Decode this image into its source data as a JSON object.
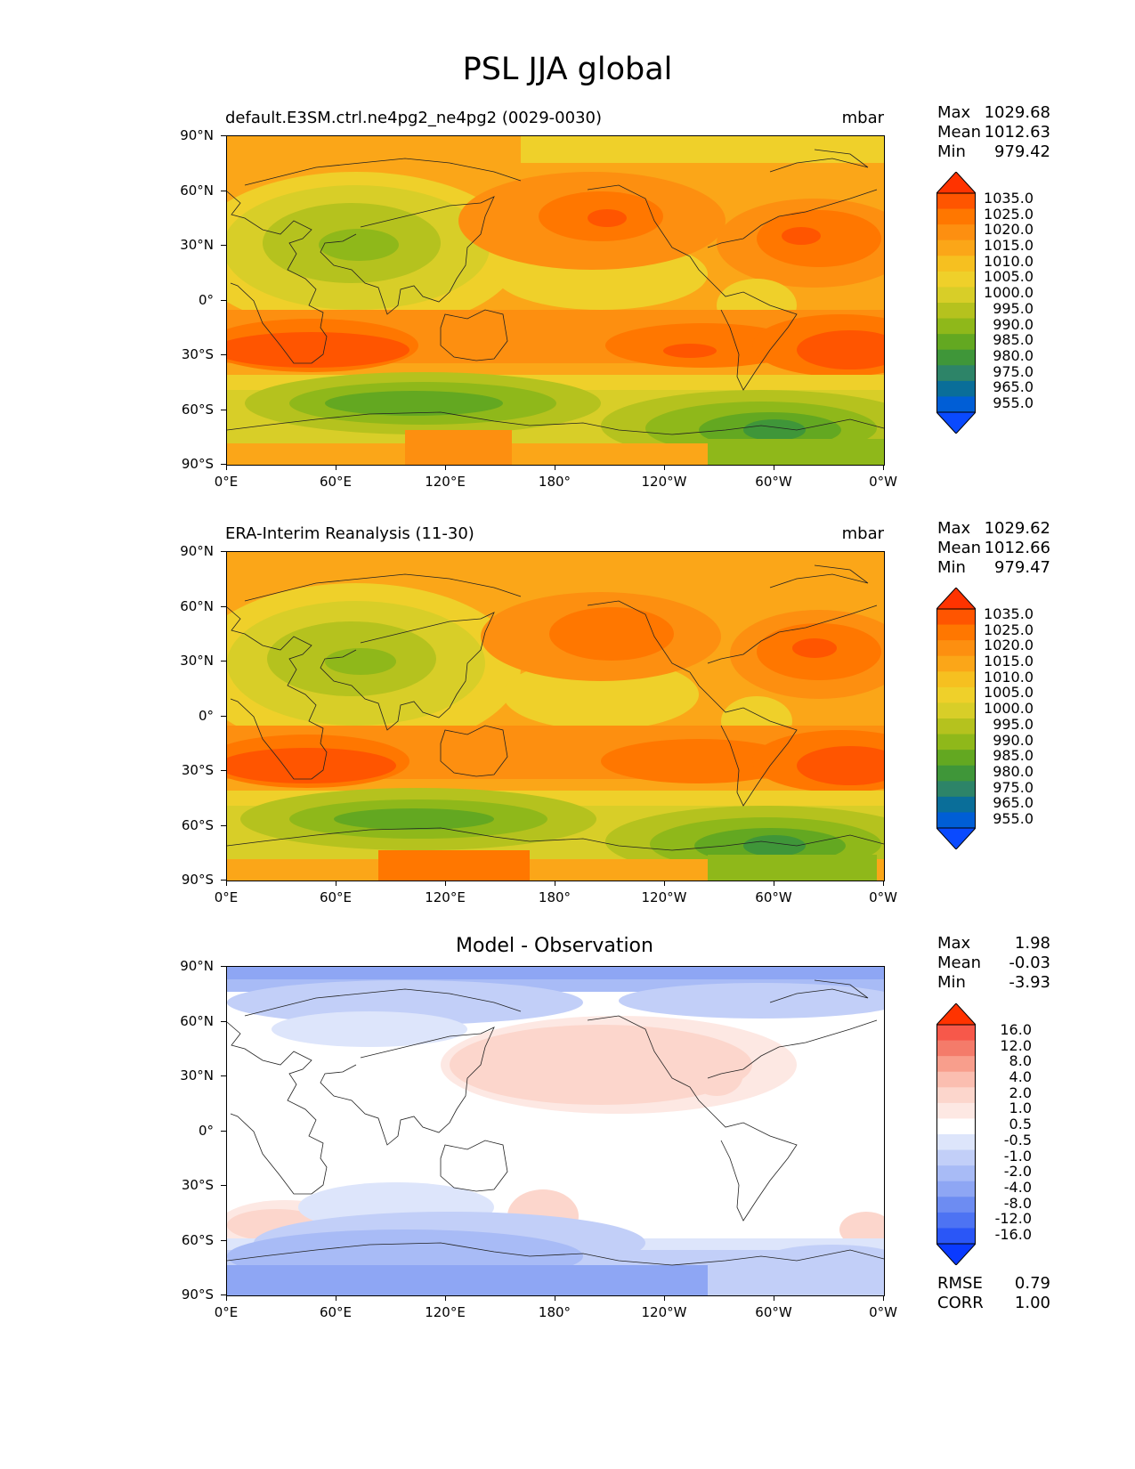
{
  "figure": {
    "title": "PSL JJA global"
  },
  "axes": {
    "lat_ticks": [
      "90°N",
      "60°N",
      "30°N",
      "0°",
      "30°S",
      "60°S",
      "90°S"
    ],
    "lon_ticks": [
      "0°E",
      "60°E",
      "120°E",
      "180°",
      "120°W",
      "60°W",
      "0°W"
    ]
  },
  "panels": [
    {
      "id": "model",
      "title": "default.E3SM.ctrl.ne4pg2_ne4pg2 (0029-0030)",
      "units": "mbar",
      "stats": [
        {
          "key": "Max",
          "value": "1029.68"
        },
        {
          "key": "Mean",
          "value": "1012.63"
        },
        {
          "key": "Min",
          "value": "979.42"
        }
      ]
    },
    {
      "id": "obs",
      "title": "ERA-Interim Reanalysis (11-30)",
      "units": "mbar",
      "stats": [
        {
          "key": "Max",
          "value": "1029.62"
        },
        {
          "key": "Mean",
          "value": "1012.66"
        },
        {
          "key": "Min",
          "value": "979.47"
        }
      ]
    },
    {
      "id": "diff",
      "title": "Model - Observation",
      "stats": [
        {
          "key": "Max",
          "value": "1.98"
        },
        {
          "key": "Mean",
          "value": "-0.03"
        },
        {
          "key": "Min",
          "value": "-3.93"
        }
      ],
      "metrics": [
        {
          "key": "RMSE",
          "value": "0.79"
        },
        {
          "key": "CORR",
          "value": "1.00"
        }
      ]
    }
  ],
  "colorbars": {
    "field": {
      "labels": [
        "1035.0",
        "1025.0",
        "1020.0",
        "1015.0",
        "1010.0",
        "1005.0",
        "1000.0",
        "995.0",
        "990.0",
        "985.0",
        "980.0",
        "975.0",
        "965.0",
        "955.0"
      ],
      "colors": [
        "#ff3300",
        "#ff5500",
        "#ff7700",
        "#fd8f10",
        "#fba618",
        "#f6c020",
        "#efd02a",
        "#d8ce28",
        "#b5c21e",
        "#8fb81a",
        "#63a821",
        "#3f9639",
        "#2d8468",
        "#0a6e99",
        "#005ed6",
        "#0a4aff"
      ]
    },
    "diff": {
      "labels": [
        "16.0",
        "12.0",
        "8.0",
        "4.0",
        "2.0",
        "1.0",
        "0.5",
        "-0.5",
        "-1.0",
        "-2.0",
        "-4.0",
        "-8.0",
        "-12.0",
        "-16.0"
      ],
      "colors": [
        "#ff3300",
        "#f7584a",
        "#f47b6a",
        "#f89e8c",
        "#fbbeb0",
        "#fcd6cc",
        "#fde8e3",
        "#ffffff",
        "#dde5fb",
        "#c2cff8",
        "#a8bbf6",
        "#8ea6f4",
        "#6d8cf2",
        "#4d73f3",
        "#2a56f7",
        "#0a3aff"
      ]
    }
  },
  "chart_data": {
    "type": "heatmap",
    "variable": "PSL",
    "season": "JJA",
    "region": "global",
    "units": "mbar",
    "lat_range": [
      -90,
      90
    ],
    "lon_range": [
      0,
      360
    ],
    "panels": [
      {
        "name": "default.E3SM.ctrl.ne4pg2_ne4pg2 (0029-0030)",
        "max": 1029.68,
        "mean": 1012.63,
        "min": 979.42
      },
      {
        "name": "ERA-Interim Reanalysis (11-30)",
        "max": 1029.62,
        "mean": 1012.66,
        "min": 979.47
      },
      {
        "name": "Model - Observation",
        "max": 1.98,
        "mean": -0.03,
        "min": -3.93,
        "rmse": 0.79,
        "corr": 1.0
      }
    ],
    "field_levels": [
      955,
      965,
      975,
      980,
      985,
      990,
      995,
      1000,
      1005,
      1010,
      1015,
      1020,
      1025,
      1035
    ],
    "diff_levels": [
      -16,
      -12,
      -8,
      -4,
      -2,
      -1,
      -0.5,
      0.5,
      1,
      2,
      4,
      8,
      12,
      16
    ]
  }
}
